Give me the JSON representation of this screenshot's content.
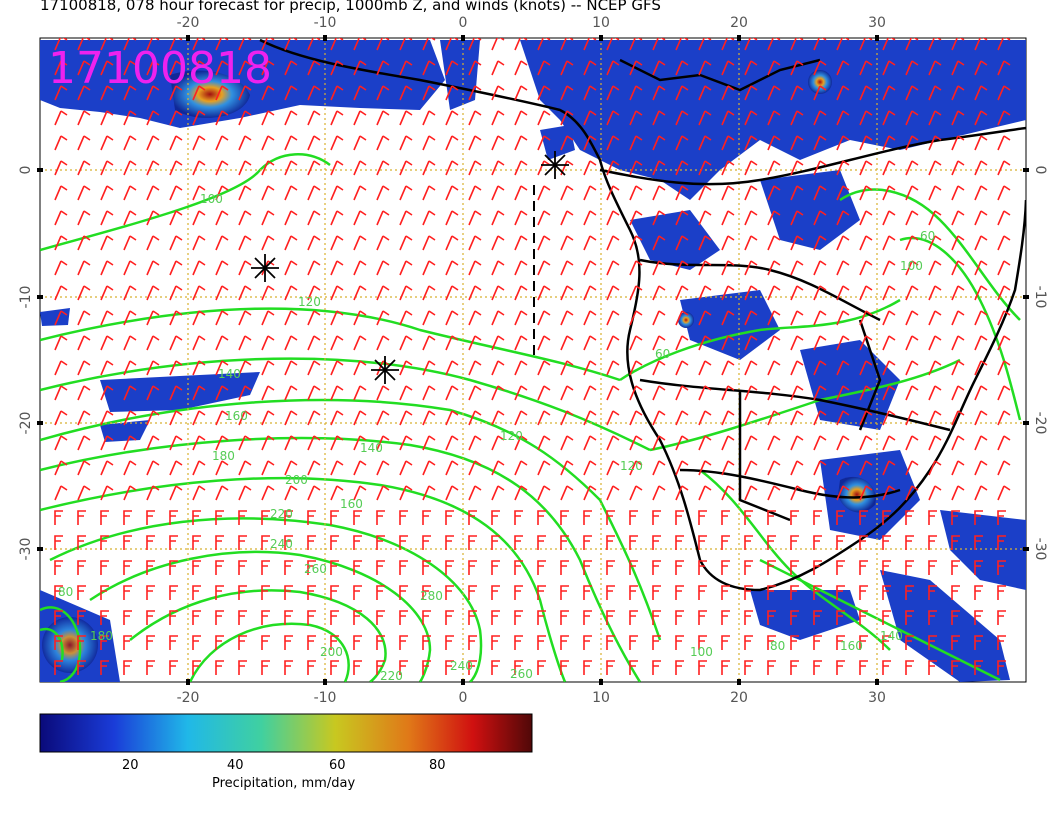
{
  "title": "17100818, 078 hour forecast for precip, 1000mb Z, and winds (knots) -- NCEP GFS",
  "stamp": "17100818",
  "map": {
    "lon_labels": [
      "-20",
      "-10",
      "0",
      "10",
      "20",
      "30"
    ],
    "lat_labels": [
      "0",
      "-10",
      "-20",
      "-30"
    ],
    "contour_labels": [
      "100",
      "120",
      "140",
      "160",
      "180",
      "200",
      "220",
      "240",
      "260",
      "60",
      "80",
      "100",
      "120",
      "120",
      "140",
      "160",
      "180",
      "200",
      "220",
      "240",
      "260",
      "280",
      "60",
      "80",
      "100",
      "140",
      "160"
    ],
    "colors": {
      "contours": "#22dd22",
      "barbs": "#ff2020",
      "stamp": "#ee22ee",
      "grid": "#d8b030",
      "coast": "#000000"
    }
  },
  "colorbar": {
    "tick_labels": [
      "20",
      "40",
      "60",
      "80"
    ],
    "title": "Precipitation, mm/day",
    "range": [
      0,
      100
    ]
  }
}
